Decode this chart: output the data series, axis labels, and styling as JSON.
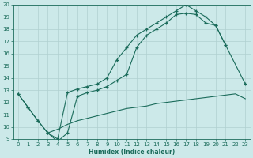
{
  "xlabel": "Humidex (Indice chaleur)",
  "xlim": [
    -0.5,
    23.5
  ],
  "ylim": [
    9,
    20
  ],
  "xticks": [
    0,
    1,
    2,
    3,
    4,
    5,
    6,
    7,
    8,
    9,
    10,
    11,
    12,
    13,
    14,
    15,
    16,
    17,
    18,
    19,
    20,
    21,
    22,
    23
  ],
  "yticks": [
    9,
    10,
    11,
    12,
    13,
    14,
    15,
    16,
    17,
    18,
    19,
    20
  ],
  "bg_color": "#cce9e9",
  "line_color": "#1a6b5a",
  "grid_color": "#b0d0d0",
  "curve1_x": [
    0,
    1,
    2,
    3,
    4,
    5,
    6,
    7,
    8,
    9,
    10,
    11,
    12,
    13,
    14,
    15,
    16,
    17,
    18,
    19,
    20,
    21
  ],
  "curve1_y": [
    12.7,
    11.6,
    10.5,
    9.5,
    9.0,
    12.8,
    13.1,
    13.3,
    13.5,
    14.0,
    15.5,
    16.5,
    17.5,
    18.0,
    18.5,
    19.0,
    19.5,
    20.0,
    19.5,
    19.0,
    18.3,
    16.7
  ],
  "curve2_x": [
    0,
    1,
    2,
    3,
    4,
    5,
    6,
    7,
    8,
    9,
    10,
    11,
    12,
    13,
    14,
    15,
    16,
    17,
    18,
    19,
    20,
    21,
    23
  ],
  "curve2_y": [
    12.7,
    11.6,
    10.5,
    9.5,
    8.8,
    9.5,
    12.5,
    12.8,
    13.0,
    13.3,
    13.8,
    14.3,
    16.5,
    17.5,
    18.0,
    18.5,
    19.2,
    19.3,
    19.2,
    18.5,
    18.3,
    16.7,
    13.5
  ],
  "curve3_x": [
    3,
    4,
    5,
    6,
    7,
    8,
    9,
    10,
    11,
    12,
    13,
    14,
    15,
    16,
    17,
    18,
    19,
    20,
    21,
    22,
    23
  ],
  "curve3_y": [
    9.5,
    9.8,
    10.2,
    10.5,
    10.7,
    10.9,
    11.1,
    11.3,
    11.5,
    11.6,
    11.7,
    11.9,
    12.0,
    12.1,
    12.2,
    12.3,
    12.4,
    12.5,
    12.6,
    12.7,
    12.3
  ]
}
